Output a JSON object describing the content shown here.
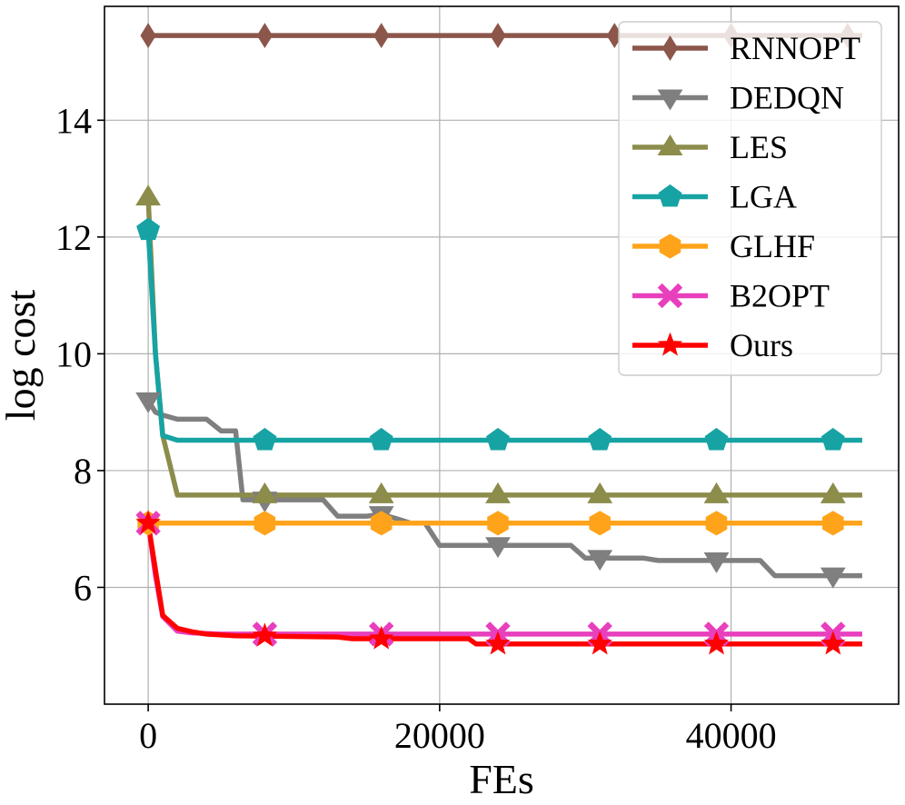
{
  "chart_data": {
    "type": "line",
    "title": "",
    "xlabel": "FEs",
    "ylabel": "log cost",
    "xlim": [
      -3000,
      51500
    ],
    "ylim": [
      4.0,
      15.95
    ],
    "xticks": [
      0,
      20000,
      40000
    ],
    "xtick_labels": [
      "0",
      "20000",
      "40000"
    ],
    "yticks": [
      6,
      8,
      10,
      12,
      14
    ],
    "ytick_labels": [
      "6",
      "8",
      "10",
      "12",
      "14"
    ],
    "grid": true,
    "legend_position": "top-right",
    "series": [
      {
        "name": "RNNOPT",
        "color": "#8c564b",
        "marker": "diamond",
        "x": [
          0,
          49000
        ],
        "y": [
          15.45,
          15.45
        ],
        "markers_x": [
          0,
          8000,
          16000,
          24000,
          32000,
          40000,
          48000
        ],
        "markers_y": [
          15.45,
          15.45,
          15.45,
          15.45,
          15.45,
          15.45,
          15.45
        ]
      },
      {
        "name": "DEDQN",
        "color": "#7f7f7f",
        "marker": "triangle-down",
        "x": [
          0,
          500,
          1000,
          2000,
          4000,
          5000,
          6000,
          6500,
          7000,
          12000,
          13000,
          14000,
          15000,
          16000,
          17000,
          18000,
          19000,
          20000,
          24000,
          29000,
          30000,
          34000,
          35000,
          38000,
          42000,
          43000,
          49000
        ],
        "y": [
          9.2,
          9.0,
          8.95,
          8.88,
          8.88,
          8.68,
          8.68,
          7.5,
          7.5,
          7.5,
          7.22,
          7.22,
          7.22,
          7.25,
          7.18,
          7.1,
          7.1,
          6.72,
          6.72,
          6.72,
          6.5,
          6.5,
          6.46,
          6.46,
          6.46,
          6.2,
          6.2
        ],
        "markers_x": [
          0,
          8000,
          16000,
          24000,
          31000,
          39000,
          47000
        ],
        "markers_y": [
          9.2,
          7.5,
          7.25,
          6.72,
          6.5,
          6.46,
          6.2
        ]
      },
      {
        "name": "LES",
        "color": "#8c8c4b",
        "marker": "triangle-up",
        "x": [
          0,
          500,
          1000,
          2000,
          49000
        ],
        "y": [
          12.68,
          10.0,
          8.6,
          7.58,
          7.58
        ],
        "markers_x": [
          0,
          8000,
          16000,
          24000,
          31000,
          39000,
          47000
        ],
        "markers_y": [
          12.68,
          7.58,
          7.58,
          7.58,
          7.58,
          7.58,
          7.58
        ]
      },
      {
        "name": "LGA",
        "color": "#17a3a3",
        "marker": "pentagon",
        "x": [
          0,
          500,
          1000,
          2000,
          49000
        ],
        "y": [
          12.12,
          10.0,
          8.6,
          8.52,
          8.52
        ],
        "markers_x": [
          0,
          8000,
          16000,
          24000,
          31000,
          39000,
          47000
        ],
        "markers_y": [
          12.12,
          8.52,
          8.52,
          8.52,
          8.52,
          8.52,
          8.52
        ]
      },
      {
        "name": "GLHF",
        "color": "#ffa31a",
        "marker": "hexagon",
        "x": [
          0,
          49000
        ],
        "y": [
          7.1,
          7.1
        ],
        "markers_x": [
          0,
          8000,
          16000,
          24000,
          31000,
          39000,
          47000
        ],
        "markers_y": [
          7.1,
          7.1,
          7.1,
          7.1,
          7.1,
          7.1,
          7.1
        ]
      },
      {
        "name": "B2OPT",
        "color": "#e83fbd",
        "marker": "x",
        "x": [
          0,
          500,
          1000,
          2000,
          3000,
          5000,
          7000,
          49000
        ],
        "y": [
          7.1,
          6.2,
          5.5,
          5.25,
          5.22,
          5.2,
          5.2,
          5.2
        ],
        "markers_x": [
          0,
          8000,
          16000,
          24000,
          31000,
          39000,
          47000
        ],
        "markers_y": [
          7.1,
          5.2,
          5.2,
          5.2,
          5.2,
          5.2,
          5.2
        ]
      },
      {
        "name": "Ours",
        "color": "#ff0000",
        "marker": "star",
        "x": [
          0,
          500,
          1000,
          2000,
          3000,
          4000,
          6000,
          13000,
          14000,
          22000,
          22500,
          49000
        ],
        "y": [
          7.1,
          6.3,
          5.52,
          5.3,
          5.24,
          5.2,
          5.17,
          5.15,
          5.12,
          5.12,
          5.03,
          5.03
        ],
        "markers_x": [
          0,
          8000,
          16000,
          24000,
          31000,
          39000,
          47000
        ],
        "markers_y": [
          7.1,
          5.17,
          5.12,
          5.03,
          5.03,
          5.03,
          5.03
        ]
      }
    ]
  }
}
